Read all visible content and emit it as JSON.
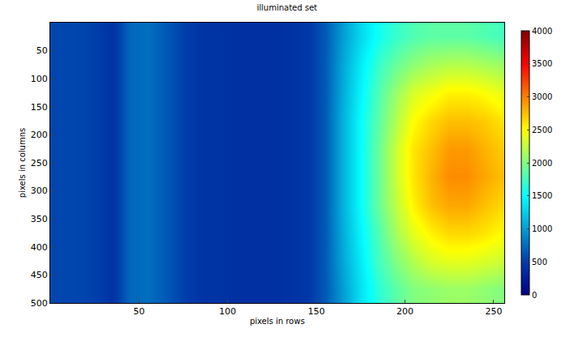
{
  "chart_data": {
    "type": "heatmap",
    "title": "illuminated set",
    "x_label": "pixels in rows",
    "y_label": "pixels in columns",
    "color": "jet",
    "x": [
      5,
      15,
      25,
      35,
      45,
      55,
      65,
      75,
      85,
      95,
      105,
      115,
      125,
      135,
      145,
      155,
      165,
      175,
      185,
      195,
      205,
      215,
      225,
      235,
      245,
      255
    ],
    "y": [
      25,
      75,
      125,
      175,
      225,
      275,
      325,
      375,
      425,
      475
    ],
    "cells": [
      [
        550,
        550,
        520,
        420,
        720,
        760,
        650,
        520,
        440,
        420,
        410,
        400,
        400,
        420,
        460,
        650,
        1000,
        1300,
        1550,
        1700,
        1800,
        1850,
        1850,
        1850,
        1800,
        1750
      ],
      [
        550,
        550,
        520,
        420,
        720,
        760,
        650,
        520,
        440,
        420,
        410,
        400,
        400,
        420,
        460,
        650,
        1050,
        1400,
        1700,
        1900,
        2050,
        2150,
        2200,
        2200,
        2150,
        2100
      ],
      [
        550,
        550,
        520,
        420,
        720,
        760,
        650,
        520,
        440,
        420,
        410,
        400,
        400,
        420,
        460,
        650,
        1080,
        1450,
        1800,
        2100,
        2350,
        2450,
        2550,
        2550,
        2500,
        2400
      ],
      [
        550,
        550,
        520,
        420,
        720,
        760,
        650,
        520,
        440,
        420,
        410,
        400,
        400,
        420,
        460,
        650,
        1100,
        1500,
        1850,
        2200,
        2500,
        2650,
        2750,
        2750,
        2700,
        2600
      ],
      [
        550,
        550,
        520,
        420,
        720,
        760,
        650,
        520,
        440,
        420,
        410,
        400,
        400,
        420,
        460,
        650,
        1100,
        1500,
        1900,
        2300,
        2600,
        2750,
        2900,
        2900,
        2800,
        2700
      ],
      [
        550,
        550,
        520,
        420,
        720,
        760,
        650,
        520,
        440,
        420,
        410,
        400,
        400,
        420,
        460,
        650,
        1100,
        1500,
        1900,
        2300,
        2600,
        2800,
        2950,
        2950,
        2850,
        2750
      ],
      [
        550,
        550,
        520,
        420,
        720,
        760,
        650,
        520,
        440,
        420,
        410,
        400,
        400,
        420,
        460,
        650,
        1100,
        1500,
        1900,
        2250,
        2550,
        2750,
        2850,
        2850,
        2750,
        2650
      ],
      [
        550,
        550,
        520,
        420,
        720,
        760,
        650,
        520,
        440,
        420,
        410,
        400,
        400,
        420,
        460,
        650,
        1080,
        1450,
        1800,
        2150,
        2400,
        2550,
        2650,
        2650,
        2600,
        2500
      ],
      [
        550,
        550,
        520,
        420,
        720,
        760,
        650,
        520,
        440,
        420,
        410,
        400,
        400,
        420,
        460,
        650,
        1050,
        1400,
        1750,
        2000,
        2200,
        2350,
        2400,
        2400,
        2350,
        2300
      ],
      [
        550,
        550,
        520,
        420,
        720,
        760,
        650,
        520,
        440,
        420,
        410,
        400,
        400,
        420,
        460,
        650,
        1000,
        1350,
        1650,
        1850,
        2000,
        2050,
        2100,
        2100,
        2050,
        2000
      ]
    ],
    "xlim": [
      0,
      256
    ],
    "xticks": [
      50,
      100,
      150,
      200,
      250
    ],
    "ylim": [
      500,
      0
    ],
    "yticks": [
      50,
      100,
      150,
      200,
      250,
      300,
      350,
      400,
      450,
      500
    ],
    "colorbar_range": [
      0,
      4000
    ],
    "colorbar_ticks": [
      0,
      500,
      1000,
      1500,
      2000,
      2500,
      3000,
      3500,
      4000
    ]
  }
}
